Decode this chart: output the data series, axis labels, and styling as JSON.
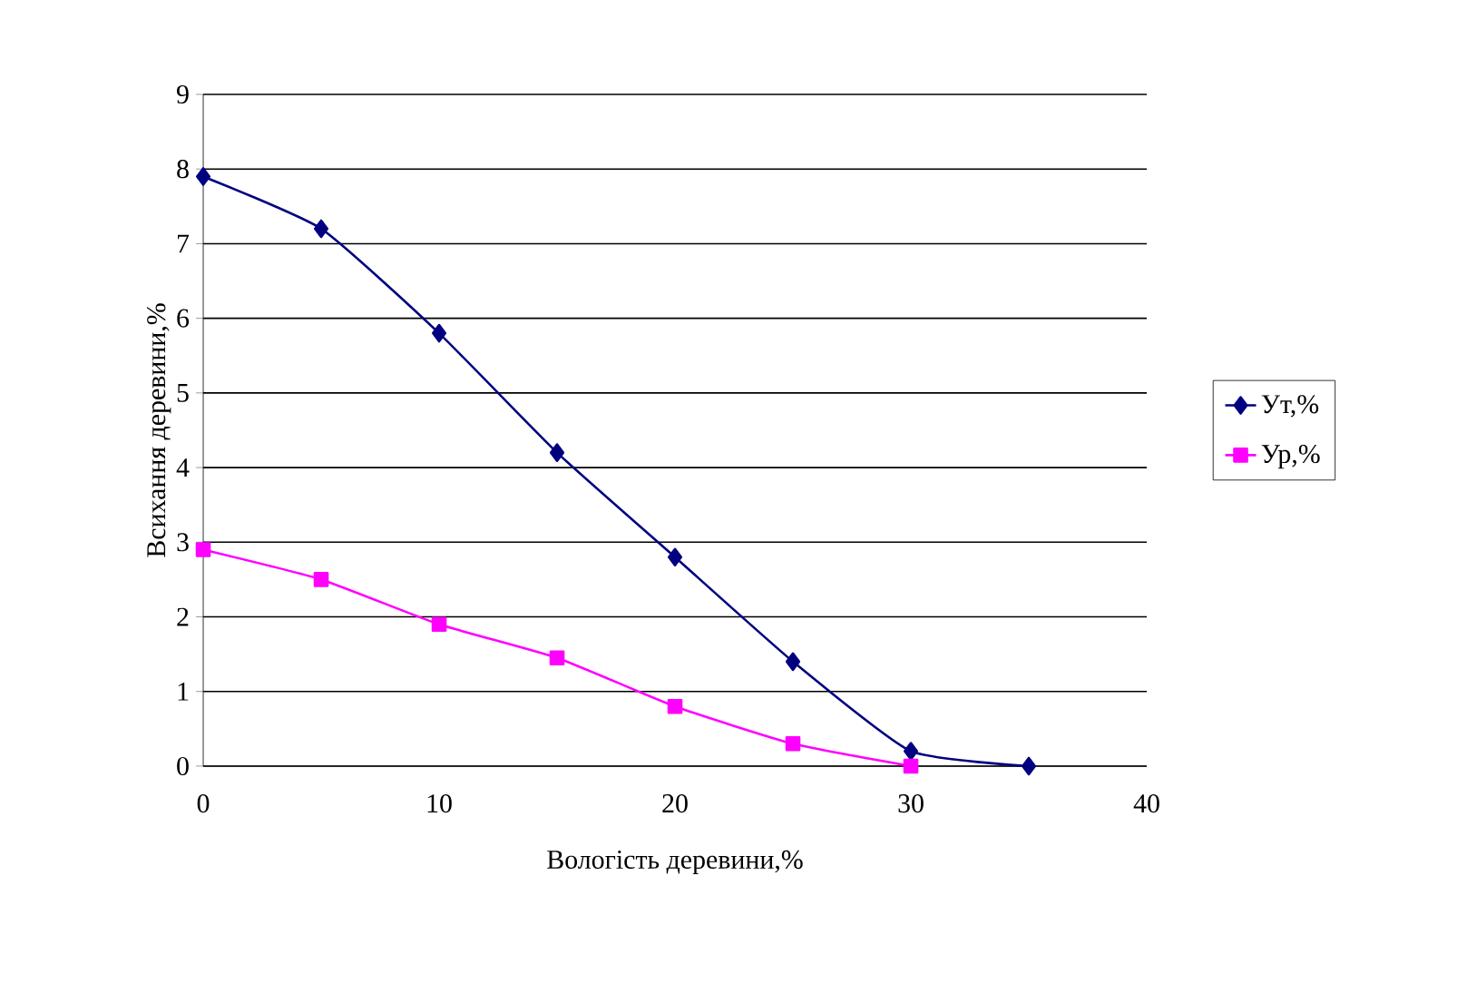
{
  "chart_data": {
    "type": "line",
    "xlabel": "Вологість деревини,%",
    "ylabel": "Всихання деревини,%",
    "xlim": [
      0,
      40
    ],
    "xticks": [
      0,
      10,
      20,
      30,
      40
    ],
    "ylim": [
      0,
      9
    ],
    "yticks": [
      0,
      1,
      2,
      3,
      4,
      5,
      6,
      7,
      8,
      9
    ],
    "grid": "y",
    "legend": "right",
    "series": [
      {
        "name": "Ут,%",
        "color": "#000080",
        "marker": "diamond",
        "x": [
          0,
          5,
          10,
          15,
          20,
          25,
          30,
          35
        ],
        "values": [
          7.9,
          7.2,
          5.8,
          4.2,
          2.8,
          1.4,
          0.2,
          0
        ]
      },
      {
        "name": "Ур,%",
        "color": "#ff00ff",
        "marker": "square",
        "x": [
          0,
          5,
          10,
          15,
          20,
          25,
          30
        ],
        "values": [
          2.9,
          2.5,
          1.9,
          1.45,
          0.8,
          0.3,
          0
        ]
      }
    ]
  }
}
